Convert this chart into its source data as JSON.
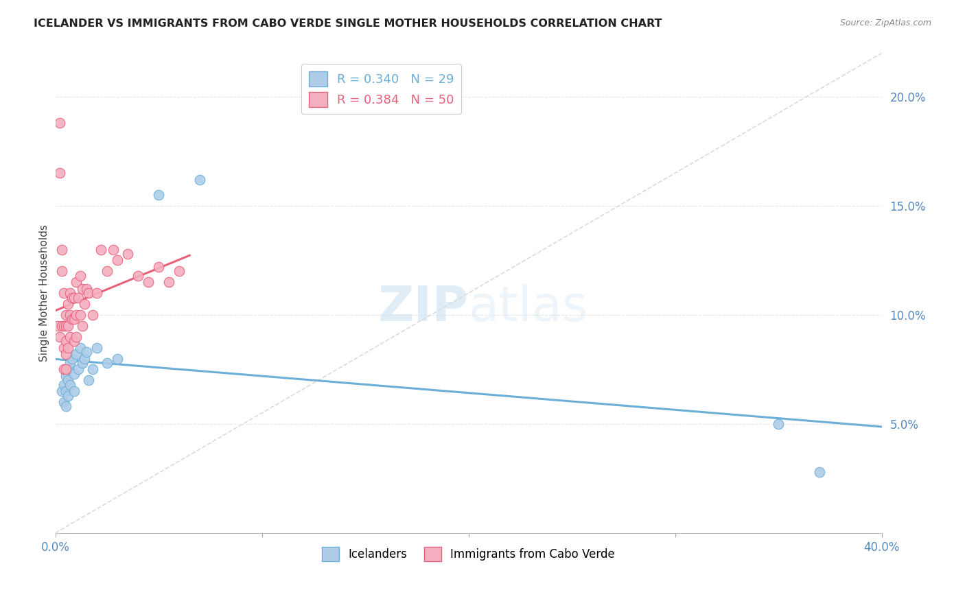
{
  "title": "ICELANDER VS IMMIGRANTS FROM CABO VERDE SINGLE MOTHER HOUSEHOLDS CORRELATION CHART",
  "source": "Source: ZipAtlas.com",
  "ylabel": "Single Mother Households",
  "ylabel_right_ticks": [
    "5.0%",
    "10.0%",
    "15.0%",
    "20.0%"
  ],
  "ylabel_right_values": [
    0.05,
    0.1,
    0.15,
    0.2
  ],
  "xmin": 0.0,
  "xmax": 0.4,
  "ymin": 0.0,
  "ymax": 0.22,
  "icelanders_color": "#aecce8",
  "icelanders_edge_color": "#6baed6",
  "cabo_verde_color": "#f4afc0",
  "cabo_verde_edge_color": "#e8607a",
  "diagonal_color": "#cccccc",
  "legend_R_icelanders": "R = 0.340",
  "legend_N_icelanders": "N = 29",
  "legend_R_cabo": "R = 0.384",
  "legend_N_cabo": "N = 50",
  "icelanders_x": [
    0.003,
    0.004,
    0.004,
    0.005,
    0.005,
    0.005,
    0.006,
    0.006,
    0.006,
    0.007,
    0.007,
    0.008,
    0.009,
    0.009,
    0.01,
    0.011,
    0.012,
    0.013,
    0.014,
    0.015,
    0.016,
    0.018,
    0.02,
    0.025,
    0.03,
    0.05,
    0.07,
    0.35,
    0.37
  ],
  "icelanders_y": [
    0.065,
    0.068,
    0.06,
    0.072,
    0.065,
    0.058,
    0.075,
    0.07,
    0.063,
    0.078,
    0.068,
    0.08,
    0.073,
    0.065,
    0.082,
    0.075,
    0.085,
    0.078,
    0.08,
    0.083,
    0.07,
    0.075,
    0.085,
    0.078,
    0.08,
    0.155,
    0.162,
    0.05,
    0.028
  ],
  "cabo_verde_x": [
    0.001,
    0.002,
    0.002,
    0.002,
    0.003,
    0.003,
    0.003,
    0.004,
    0.004,
    0.004,
    0.004,
    0.005,
    0.005,
    0.005,
    0.005,
    0.005,
    0.006,
    0.006,
    0.006,
    0.007,
    0.007,
    0.007,
    0.008,
    0.008,
    0.009,
    0.009,
    0.009,
    0.01,
    0.01,
    0.01,
    0.011,
    0.012,
    0.012,
    0.013,
    0.013,
    0.014,
    0.015,
    0.016,
    0.018,
    0.02,
    0.022,
    0.025,
    0.028,
    0.03,
    0.035,
    0.04,
    0.045,
    0.05,
    0.055,
    0.06
  ],
  "cabo_verde_y": [
    0.095,
    0.188,
    0.165,
    0.09,
    0.13,
    0.12,
    0.095,
    0.11,
    0.095,
    0.085,
    0.075,
    0.1,
    0.095,
    0.088,
    0.082,
    0.075,
    0.105,
    0.095,
    0.085,
    0.11,
    0.1,
    0.09,
    0.108,
    0.098,
    0.108,
    0.098,
    0.088,
    0.115,
    0.1,
    0.09,
    0.108,
    0.118,
    0.1,
    0.112,
    0.095,
    0.105,
    0.112,
    0.11,
    0.1,
    0.11,
    0.13,
    0.12,
    0.13,
    0.125,
    0.128,
    0.118,
    0.115,
    0.122,
    0.115,
    0.12
  ],
  "watermark_zip": "ZIP",
  "watermark_atlas": "atlas",
  "background_color": "#ffffff",
  "grid_color": "#e8e8e8",
  "title_color": "#222222",
  "axis_label_color": "#5588bb",
  "ylabel_color": "#444444"
}
